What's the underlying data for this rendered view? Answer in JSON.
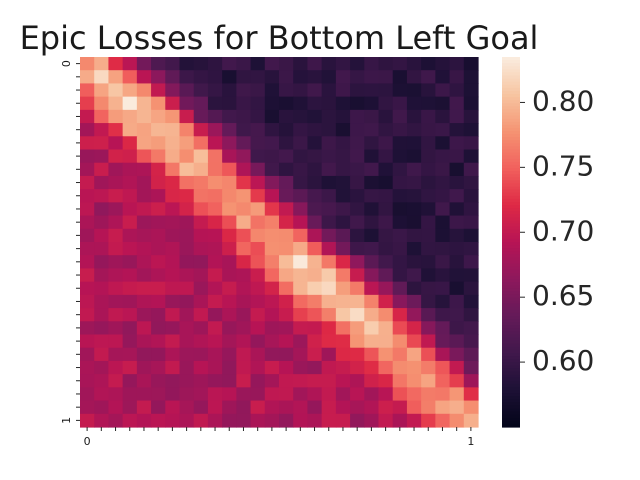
{
  "chart_data": {
    "type": "heatmap",
    "title": "Epic Losses for Bottom Left Goal",
    "xlabel": "",
    "ylabel": "",
    "x_tick_labels": [
      "0",
      "1"
    ],
    "y_tick_labels": [
      "0",
      "1"
    ],
    "n_rows": 28,
    "n_cols": 28,
    "colormap": "rocket",
    "vmin": 0.55,
    "vmax": 0.835,
    "colorbar_ticks": [
      0.6,
      0.65,
      0.7,
      0.75,
      0.8
    ],
    "colorbar_tick_labels": [
      "0.60",
      "0.65",
      "0.70",
      "0.75",
      "0.80"
    ],
    "values_description": "Values near 0.80-0.83 along the main diagonal (bright band from top-left to bottom-right), falling to about 0.67-0.71 in the lower-left region and to about 0.56-0.61 in the upper-right region."
  }
}
